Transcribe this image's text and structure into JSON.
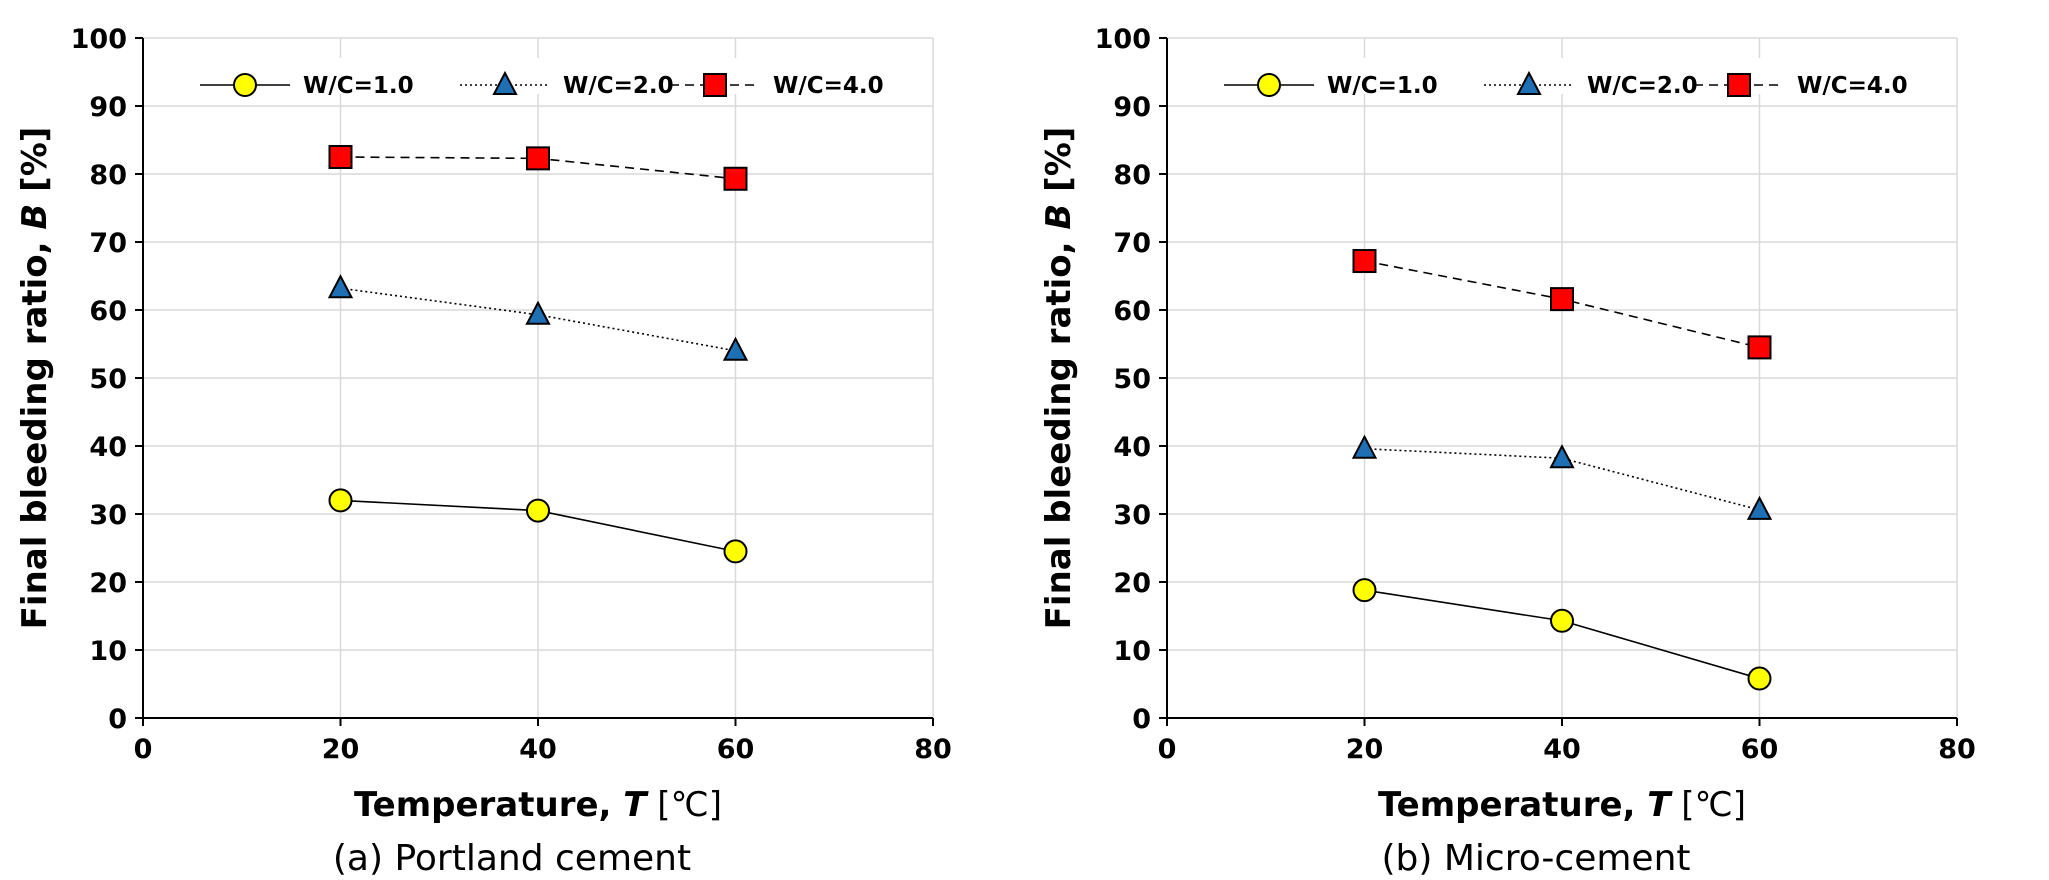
{
  "figure": {
    "captions": [
      "(a) Portland cement",
      "(b) Micro-cement"
    ]
  },
  "colors": {
    "circle_fill": "#FFFF00",
    "triangle_fill": "#1F6FB5",
    "square_fill": "#FF0000",
    "grid": "#D9D9D9",
    "axis": "#000000"
  },
  "chart_data": [
    {
      "type": "line",
      "caption": "(a) Portland cement",
      "title": "",
      "xlabel": "Temperature, T [℃]",
      "xlabel_prefix": "Temperature, ",
      "xlabel_var": "T",
      "xlabel_unit": " [℃]",
      "ylabel": "Final bleeding ratio, B [%]",
      "ylabel_prefix": "Final bleeding ratio, ",
      "ylabel_var": "B",
      "ylabel_unit": " [%]",
      "xlim": [
        0,
        80
      ],
      "ylim": [
        0,
        100
      ],
      "xticks": [
        0,
        20,
        40,
        60,
        80
      ],
      "yticks": [
        0,
        10,
        20,
        30,
        40,
        50,
        60,
        70,
        80,
        90,
        100
      ],
      "grid": true,
      "legend_position": "top",
      "x": [
        20,
        40,
        60
      ],
      "series": [
        {
          "name": "W/C=1.0",
          "marker": "circle",
          "line": "solid",
          "values": [
            32.0,
            30.5,
            24.5
          ]
        },
        {
          "name": "W/C=2.0",
          "marker": "triangle",
          "line": "dotted",
          "values": [
            63.2,
            59.3,
            54.0
          ]
        },
        {
          "name": "W/C=4.0",
          "marker": "square",
          "line": "dashed",
          "values": [
            82.5,
            82.3,
            79.3
          ]
        }
      ]
    },
    {
      "type": "line",
      "caption": "(b) Micro-cement",
      "title": "",
      "xlabel": "Temperature, T [℃]",
      "xlabel_prefix": "Temperature, ",
      "xlabel_var": "T",
      "xlabel_unit": " [℃]",
      "ylabel": "Final bleeding ratio, B [%]",
      "ylabel_prefix": "Final bleeding ratio, ",
      "ylabel_var": "B",
      "ylabel_unit": " [%]",
      "xlim": [
        0,
        80
      ],
      "ylim": [
        0,
        100
      ],
      "xticks": [
        0,
        20,
        40,
        60,
        80
      ],
      "yticks": [
        0,
        10,
        20,
        30,
        40,
        50,
        60,
        70,
        80,
        90,
        100
      ],
      "grid": true,
      "legend_position": "top",
      "x": [
        20,
        40,
        60
      ],
      "series": [
        {
          "name": "W/C=1.0",
          "marker": "circle",
          "line": "solid",
          "values": [
            18.8,
            14.3,
            5.8
          ]
        },
        {
          "name": "W/C=2.0",
          "marker": "triangle",
          "line": "dotted",
          "values": [
            39.6,
            38.2,
            30.6
          ]
        },
        {
          "name": "W/C=4.0",
          "marker": "square",
          "line": "dashed",
          "values": [
            67.2,
            61.6,
            54.5
          ]
        }
      ]
    }
  ]
}
